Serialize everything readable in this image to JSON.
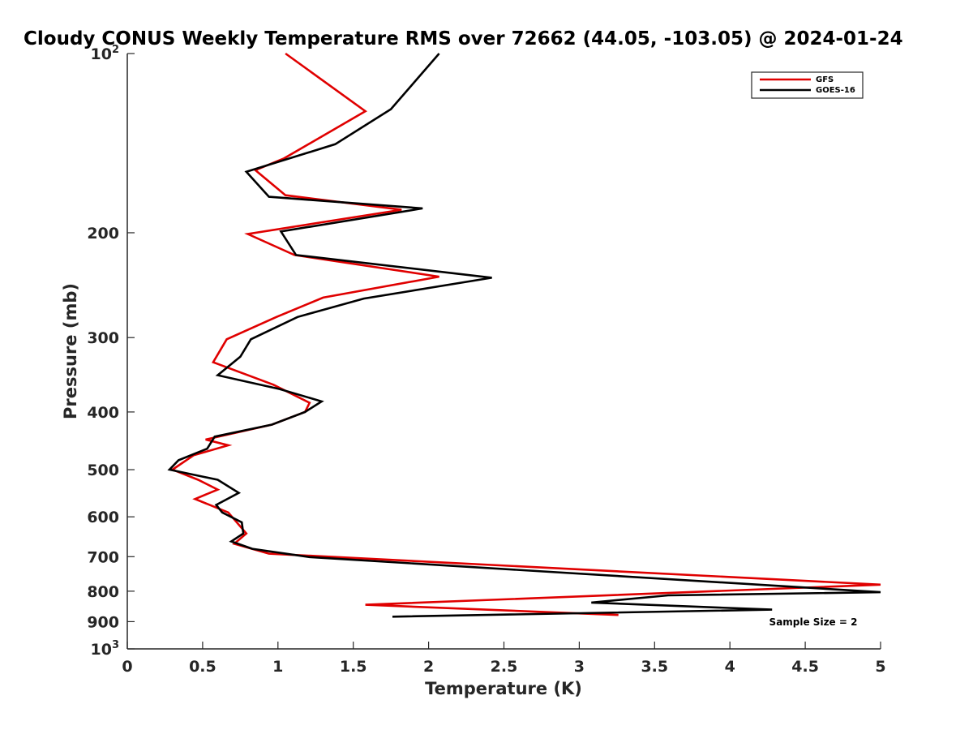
{
  "chart_data": {
    "type": "line",
    "title": "Cloudy CONUS Weekly Temperature RMS over 72662 (44.05, -103.05) @ 2024-01-24",
    "xlabel": "Temperature (K)",
    "ylabel": "Pressure (mb)",
    "xlim": [
      0,
      5
    ],
    "ylim": [
      100,
      1000
    ],
    "y_scale": "log",
    "y_reversed": true,
    "grid": false,
    "legend_position": "top-right",
    "x_ticks": [
      "0",
      "0.5",
      "1",
      "1.5",
      "2",
      "2.5",
      "3",
      "3.5",
      "4",
      "4.5",
      "5"
    ],
    "x_tick_values": [
      0,
      0.5,
      1,
      1.5,
      2,
      2.5,
      3,
      3.5,
      4,
      4.5,
      5
    ],
    "y_ticks": [
      {
        "value": 100,
        "base": "10",
        "exp": "2"
      },
      {
        "value": 200,
        "label": "200"
      },
      {
        "value": 300,
        "label": "300"
      },
      {
        "value": 400,
        "label": "400"
      },
      {
        "value": 500,
        "label": "500"
      },
      {
        "value": 600,
        "label": "600"
      },
      {
        "value": 700,
        "label": "700"
      },
      {
        "value": 800,
        "label": "800"
      },
      {
        "value": 900,
        "label": "900"
      },
      {
        "value": 1000,
        "base": "10",
        "exp": "3"
      }
    ],
    "annotation": "Sample Size = 2",
    "series": [
      {
        "name": "GFS",
        "color": "#e00000",
        "x": [
          1.05,
          1.58,
          1.04,
          0.85,
          1.05,
          1.82,
          0.8,
          1.11,
          2.07,
          1.3,
          0.99,
          0.66,
          0.57,
          0.97,
          1.21,
          1.18,
          0.96,
          0.52,
          0.67,
          0.44,
          0.3,
          0.47,
          0.6,
          0.45,
          0.67,
          0.79,
          0.71,
          0.94,
          5.0,
          1.58,
          3.26
        ],
        "y": [
          100,
          125,
          150,
          157,
          173,
          183,
          201,
          218,
          237,
          257,
          277,
          302,
          330,
          360,
          386,
          400,
          420,
          445,
          455,
          473,
          500,
          520,
          540,
          560,
          590,
          640,
          666,
          692,
          780,
          843,
          877
        ]
      },
      {
        "name": "GOES-16",
        "color": "#000000",
        "x": [
          2.07,
          1.75,
          1.38,
          0.79,
          0.94,
          1.96,
          1.02,
          1.12,
          2.42,
          1.57,
          1.13,
          0.82,
          0.75,
          0.6,
          1.01,
          1.29,
          1.18,
          0.96,
          0.58,
          0.53,
          0.34,
          0.28,
          0.6,
          0.74,
          0.59,
          0.63,
          0.76,
          0.77,
          0.69,
          0.83,
          1.21,
          5.0,
          3.59,
          3.08,
          4.28,
          1.76
        ],
        "y": [
          100,
          124,
          142,
          158,
          174,
          182,
          199,
          218,
          238,
          258,
          277,
          302,
          323,
          347,
          366,
          384,
          400,
          420,
          440,
          461,
          482,
          500,
          520,
          547,
          573,
          590,
          613,
          640,
          660,
          679,
          701,
          803,
          813,
          836,
          859,
          883
        ]
      }
    ]
  }
}
